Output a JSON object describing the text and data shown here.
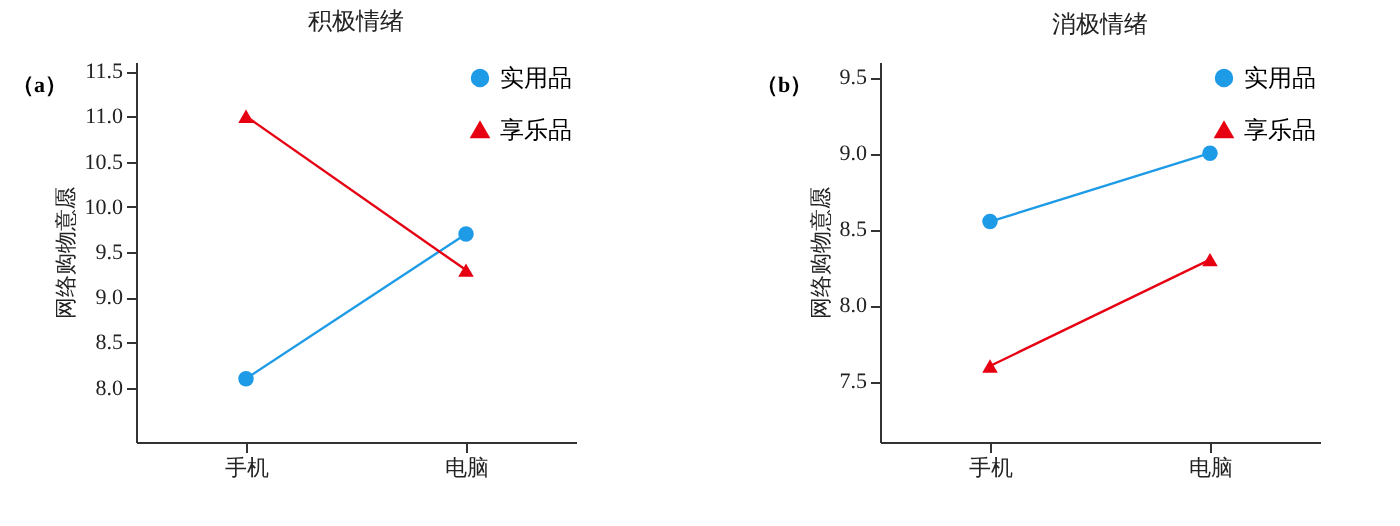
{
  "chart_data": [
    {
      "type": "line",
      "title": "积极情绪",
      "annotations": [
        "（a）"
      ],
      "ylabel": "网络购物意愿",
      "categories": [
        "手机",
        "电脑"
      ],
      "ylim": [
        7.4,
        11.6
      ],
      "yticks": [
        {
          "value": 8,
          "label": "8.0"
        },
        8.5,
        {
          "value": 9,
          "label": "9.0"
        },
        9.5,
        {
          "value": 10,
          "label": "10.0"
        },
        10.5,
        {
          "value": 11,
          "label": "11.0"
        },
        11.5
      ],
      "grid": false,
      "legend": "top right",
      "series": [
        {
          "name": "实用品",
          "color": "#1e9be6",
          "marker": "circle",
          "values": [
            8.1,
            9.7
          ]
        },
        {
          "name": "享乐品",
          "color": "#e60012",
          "marker": "triangle",
          "values": [
            11.0,
            9.3
          ]
        }
      ]
    },
    {
      "type": "line",
      "title": "消极情绪",
      "annotations": [
        "（b）"
      ],
      "ylabel": "网络购物意愿",
      "categories": [
        "手机",
        "电脑"
      ],
      "ylim": [
        7.1,
        9.6
      ],
      "yticks": [
        7.5,
        {
          "value": 8,
          "label": "8.0"
        },
        8.5,
        {
          "value": 9,
          "label": "9.0"
        },
        9.5
      ],
      "grid": false,
      "legend": "top right",
      "series": [
        {
          "name": "实用品",
          "color": "#1e9be6",
          "marker": "circle",
          "values": [
            8.55,
            9.0
          ]
        },
        {
          "name": "享乐品",
          "color": "#e60012",
          "marker": "triangle",
          "values": [
            7.6,
            8.3
          ]
        }
      ]
    }
  ]
}
